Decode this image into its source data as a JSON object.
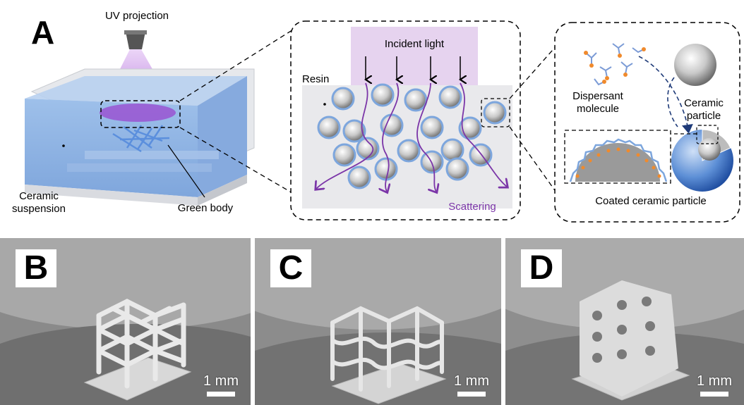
{
  "panel_a": {
    "letter": "A",
    "uv_projection": "UV projection",
    "ceramic_suspension_line1": "Ceramic",
    "ceramic_suspension_line2": "suspension",
    "green_body": "Green body",
    "incident_light": "Incident light",
    "resin": "Resin",
    "scattering": "Scattering",
    "dispersant_line1": "Dispersant",
    "dispersant_line2": "molecule",
    "ceramic_particle_line1": "Ceramic",
    "ceramic_particle_line2": "particle",
    "coated_ceramic_particle": "Coated ceramic particle"
  },
  "photos": [
    {
      "letter": "B",
      "scale": "1 mm"
    },
    {
      "letter": "C",
      "scale": "1 mm"
    },
    {
      "letter": "D",
      "scale": "1 mm"
    }
  ],
  "colors": {
    "suspension_blue": "#8fb4e3",
    "uv_purple": "#a35bd0",
    "scatter_purple": "#7b35a8",
    "particle_ring": "#7da6dd",
    "dispersant_orange": "#f08a2c"
  }
}
